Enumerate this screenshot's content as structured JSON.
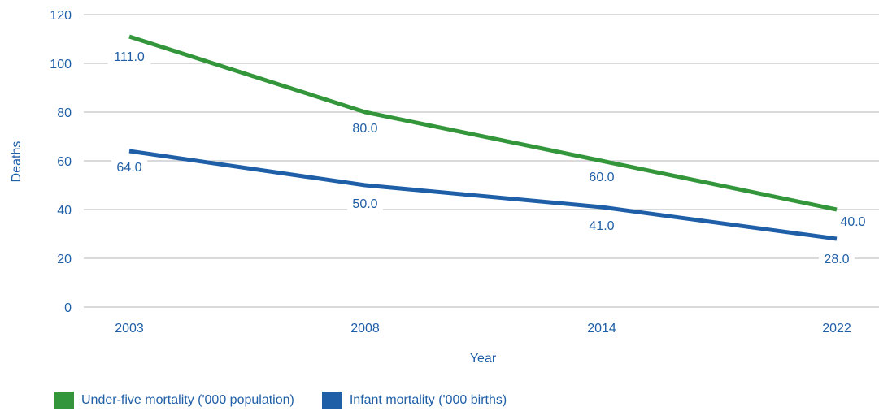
{
  "colors": {
    "text": "#1f5fa8",
    "grid": "#b4b4b4"
  },
  "chart_data": {
    "type": "line",
    "xlabel": "Year",
    "ylabel": "Deaths",
    "categories": [
      "2003",
      "2008",
      "2014",
      "2022"
    ],
    "ylim": [
      0,
      120
    ],
    "yticks": [
      "0",
      "20",
      "40",
      "60",
      "80",
      "100",
      "120"
    ],
    "grid": true,
    "legend_position": "bottom-left",
    "series": [
      {
        "name": "Under-five mortality ('000 population)",
        "color": "#33963a",
        "values": [
          111.0,
          80.0,
          60.0,
          40.0
        ],
        "labels": [
          "111.0",
          "80.0",
          "60.0",
          "40.0"
        ]
      },
      {
        "name": "Infant mortality ('000 births)",
        "color": "#1f5fa8",
        "values": [
          64.0,
          50.0,
          41.0,
          28.0
        ],
        "labels": [
          "64.0",
          "50.0",
          "41.0",
          "28.0"
        ]
      }
    ]
  }
}
